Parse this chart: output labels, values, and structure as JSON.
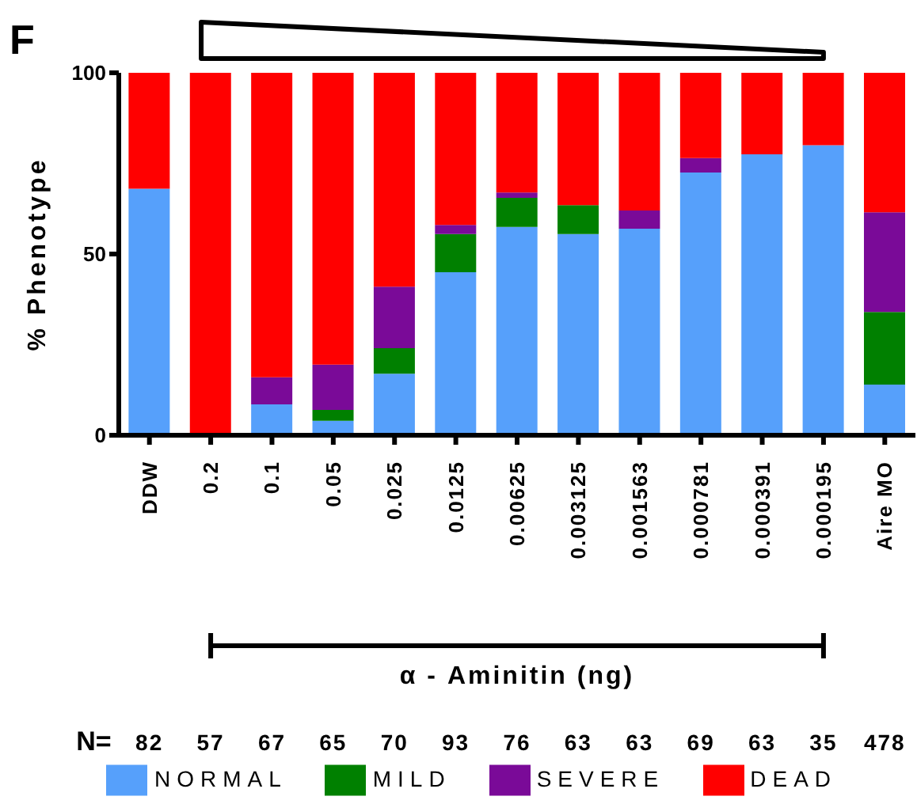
{
  "chart_data": {
    "type": "bar",
    "stacked": true,
    "ylabel": "% Phenotype",
    "xlabel": "α - Aminitin (ng)",
    "categories": [
      "DDW",
      "0.2",
      "0.1",
      "0.05",
      "0.025",
      "0.0125",
      "0.00625",
      "0.003125",
      "0.001563",
      "0.000781",
      "0.000391",
      "0.000195",
      "Aire MO"
    ],
    "ylim": [
      0,
      100
    ],
    "yticks": [
      0,
      50,
      100
    ],
    "grid": false,
    "legend": "bottom",
    "annotations": [
      "F",
      "N=",
      "82",
      "57",
      "67",
      "65",
      "70",
      "93",
      "76",
      "63",
      "63",
      "69",
      "63",
      "35",
      "478"
    ],
    "series": [
      {
        "name": "NORMAL",
        "color": "#56a0fb",
        "values": [
          68,
          0,
          8.5,
          4,
          17,
          45,
          57.5,
          55.5,
          57,
          72.5,
          77.5,
          80,
          14
        ]
      },
      {
        "name": "MILD",
        "color": "#008000",
        "values": [
          0,
          0,
          0,
          3,
          7,
          10.5,
          8,
          8,
          0,
          0,
          0,
          0,
          20
        ]
      },
      {
        "name": "SEVERE",
        "color": "#7a0a98",
        "values": [
          0,
          0,
          7.5,
          12.5,
          17,
          2.5,
          1.5,
          0,
          5,
          4,
          0,
          0,
          27.5
        ]
      },
      {
        "name": "DEAD",
        "color": "#ff0000",
        "values": [
          32,
          100,
          84,
          80.5,
          59,
          42,
          33,
          36.5,
          38,
          23.5,
          22.5,
          20,
          38.5
        ]
      }
    ]
  }
}
